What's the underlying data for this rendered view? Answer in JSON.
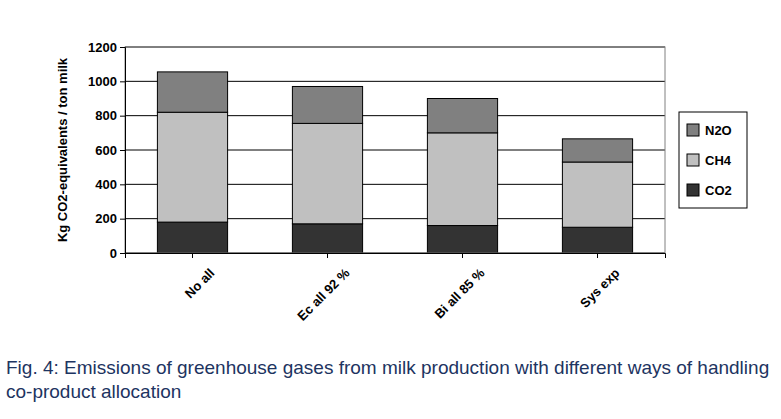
{
  "chart_data": {
    "type": "bar",
    "stacked": true,
    "title": "Fig. 4: Emissions of greenhouse gases from milk production with different ways of handling co-product allocation",
    "y_label": "Kg CO2-equivalents / ton milk",
    "categories": [
      "No all",
      "Ec all 92 %",
      "Bi all 85 %",
      "Sys exp"
    ],
    "series": [
      {
        "name": "CO2",
        "color": "#333333",
        "values": [
          180,
          170,
          160,
          150
        ]
      },
      {
        "name": "CH4",
        "color": "#c0c0c0",
        "values": [
          640,
          585,
          540,
          380
        ]
      },
      {
        "name": "N2O",
        "color": "#808080",
        "values": [
          235,
          215,
          200,
          135
        ]
      }
    ],
    "ylim": [
      0,
      1200
    ],
    "yticks": [
      0,
      200,
      400,
      600,
      800,
      1000,
      1200
    ],
    "grid": true,
    "legend": "right"
  }
}
